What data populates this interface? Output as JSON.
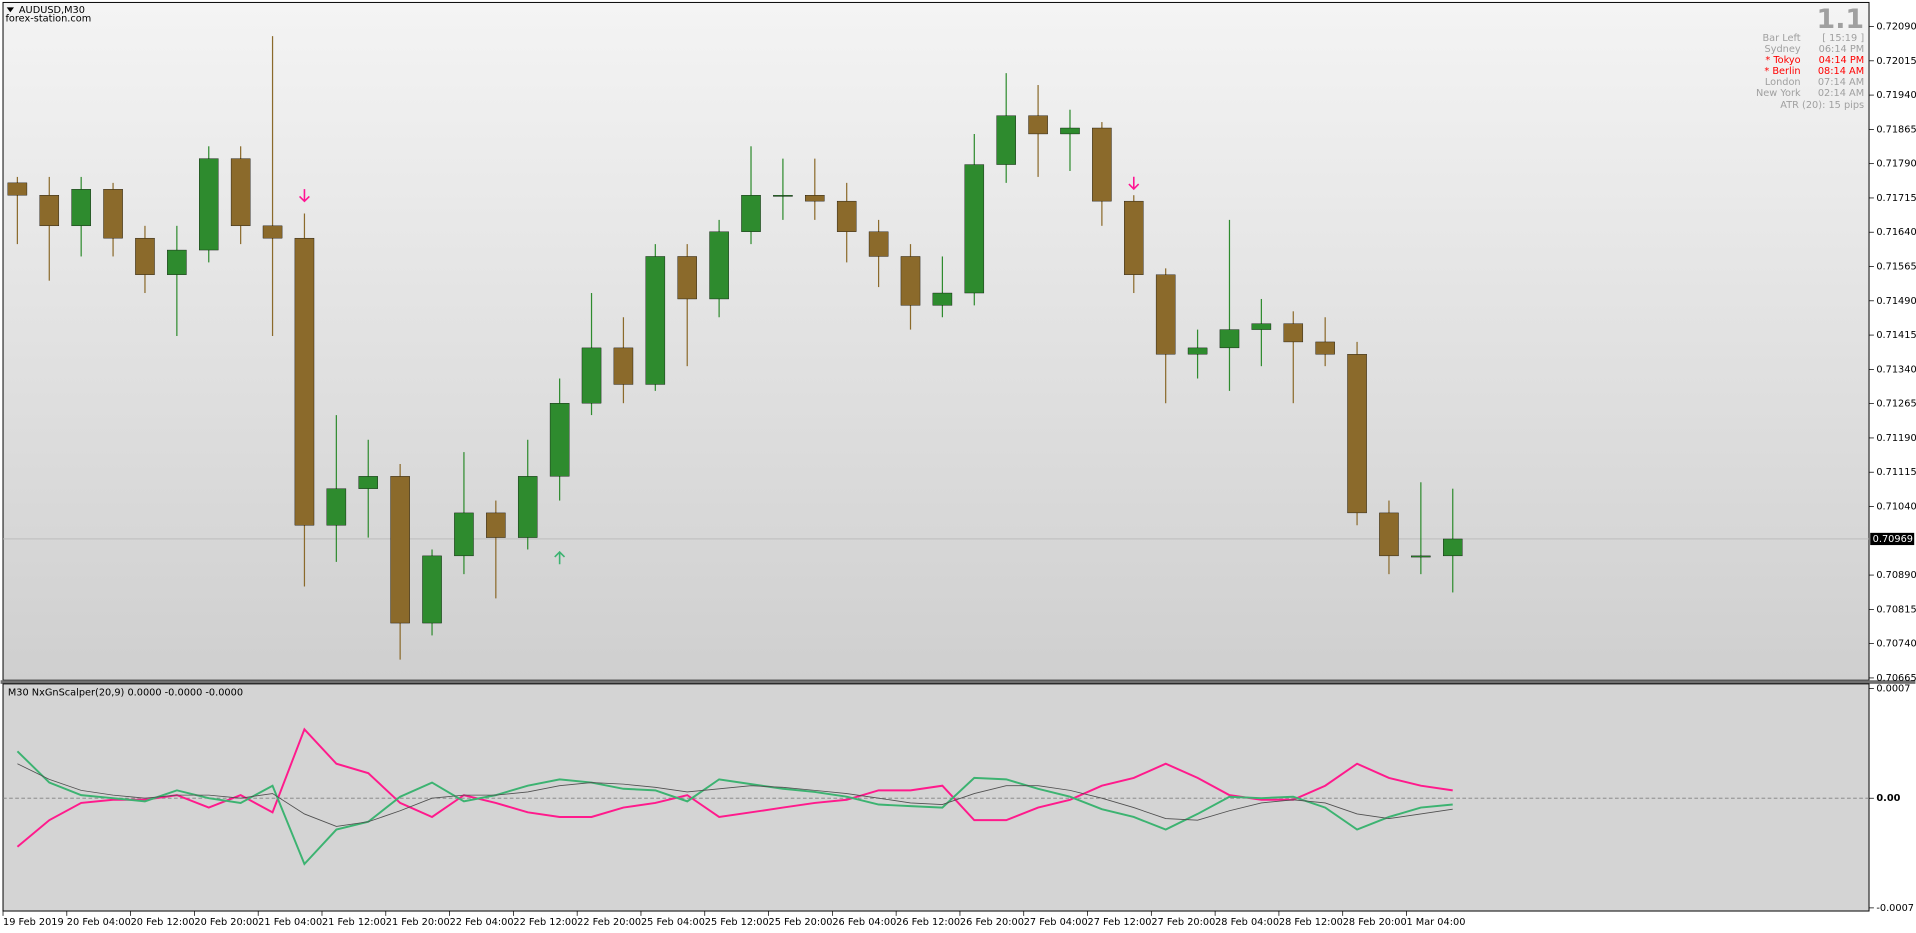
{
  "window": {
    "symbol": "AUDUSD,M30",
    "watermark": "forex-station.com"
  },
  "info": {
    "version": "1.1",
    "rows": [
      {
        "label": "Bar Left",
        "value": "[ 15:19 ]",
        "color": "#a0a0a0"
      },
      {
        "label": "Sydney",
        "value": "06:14 PM",
        "color": "#a0a0a0"
      },
      {
        "label": "* Tokyo",
        "value": "04:14 PM",
        "color": "#ff0000"
      },
      {
        "label": "* Berlin",
        "value": "08:14 AM",
        "color": "#ff0000"
      },
      {
        "label": "London",
        "value": "07:14 AM",
        "color": "#a0a0a0"
      },
      {
        "label": "New York",
        "value": "02:14 AM",
        "color": "#a0a0a0"
      }
    ],
    "atr": "ATR (20): 15 pips"
  },
  "chart_data": [
    {
      "type": "candlestick",
      "bull_color": "#2e8b2e",
      "bear_color": "#8b6a2b",
      "open": [
        0.71748,
        0.71721,
        0.71654,
        0.71734,
        0.71627,
        0.71547,
        0.71601,
        0.71801,
        0.71654,
        0.71627,
        0.70999,
        0.71079,
        0.71106,
        0.70785,
        0.70932,
        0.71026,
        0.70972,
        0.71106,
        0.71266,
        0.71387,
        0.71307,
        0.71587,
        0.71494,
        0.71641,
        0.71721,
        0.71721,
        0.71708,
        0.71641,
        0.71587,
        0.7148,
        0.71507,
        0.71788,
        0.71895,
        0.71855,
        0.71868,
        0.71708,
        0.71547,
        0.71373,
        0.71387,
        0.71427,
        0.7144,
        0.714,
        0.71373,
        0.71026,
        0.70932,
        0.70932
      ],
      "high": [
        0.71761,
        0.71761,
        0.71761,
        0.71748,
        0.71654,
        0.71654,
        0.71828,
        0.71828,
        0.72069,
        0.71681,
        0.7124,
        0.71186,
        0.71133,
        0.70946,
        0.71159,
        0.71053,
        0.71186,
        0.7132,
        0.71507,
        0.71454,
        0.71614,
        0.71614,
        0.71667,
        0.71828,
        0.71801,
        0.71801,
        0.71748,
        0.71667,
        0.71614,
        0.71587,
        0.71855,
        0.71988,
        0.71962,
        0.71908,
        0.71881,
        0.71721,
        0.71561,
        0.71427,
        0.71667,
        0.71494,
        0.71467,
        0.71454,
        0.714,
        0.71053,
        0.71093,
        0.71079
      ],
      "low": [
        0.71614,
        0.71534,
        0.71587,
        0.71587,
        0.71507,
        0.71413,
        0.71574,
        0.71614,
        0.71413,
        0.70865,
        0.70919,
        0.70972,
        0.70705,
        0.70758,
        0.70892,
        0.70839,
        0.70946,
        0.71053,
        0.7124,
        0.71266,
        0.71293,
        0.71347,
        0.71454,
        0.71614,
        0.71667,
        0.71667,
        0.71574,
        0.7152,
        0.71427,
        0.71454,
        0.7148,
        0.71748,
        0.71761,
        0.71774,
        0.71654,
        0.71507,
        0.71266,
        0.7132,
        0.71293,
        0.71347,
        0.71266,
        0.71347,
        0.70999,
        0.70892,
        0.70892,
        0.70852
      ],
      "close": [
        0.71721,
        0.71654,
        0.71734,
        0.71627,
        0.71547,
        0.71601,
        0.71801,
        0.71654,
        0.71627,
        0.70999,
        0.71079,
        0.71106,
        0.70785,
        0.70932,
        0.71026,
        0.70972,
        0.71106,
        0.71266,
        0.71387,
        0.71307,
        0.71587,
        0.71494,
        0.71641,
        0.71721,
        0.71721,
        0.71708,
        0.71641,
        0.71587,
        0.7148,
        0.71507,
        0.71788,
        0.71895,
        0.71855,
        0.71868,
        0.71708,
        0.71547,
        0.71373,
        0.71387,
        0.71427,
        0.7144,
        0.714,
        0.71373,
        0.71026,
        0.70932,
        0.70932,
        0.70969
      ],
      "xlim": [
        0,
        58.5
      ],
      "xticks": [
        {
          "value": 0,
          "label": "19 Feb 2019"
        },
        {
          "value": 2,
          "label": "20 Feb 04:00"
        },
        {
          "value": 4,
          "label": "20 Feb 12:00"
        },
        {
          "value": 6,
          "label": "20 Feb 20:00"
        },
        {
          "value": 8,
          "label": "21 Feb 04:00"
        },
        {
          "value": 10,
          "label": "21 Feb 12:00"
        },
        {
          "value": 12,
          "label": "21 Feb 20:00"
        },
        {
          "value": 14,
          "label": "22 Feb 04:00"
        },
        {
          "value": 16,
          "label": "22 Feb 12:00"
        },
        {
          "value": 18,
          "label": "22 Feb 20:00"
        },
        {
          "value": 20,
          "label": "25 Feb 04:00"
        },
        {
          "value": 22,
          "label": "25 Feb 12:00"
        },
        {
          "value": 24,
          "label": "25 Feb 20:00"
        },
        {
          "value": 26,
          "label": "26 Feb 04:00"
        },
        {
          "value": 28,
          "label": "26 Feb 12:00"
        },
        {
          "value": 30,
          "label": "26 Feb 20:00"
        },
        {
          "value": 32,
          "label": "27 Feb 04:00"
        },
        {
          "value": 34,
          "label": "27 Feb 12:00"
        },
        {
          "value": 36,
          "label": "27 Feb 20:00"
        },
        {
          "value": 38,
          "label": "28 Feb 04:00"
        },
        {
          "value": 40,
          "label": "28 Feb 12:00"
        },
        {
          "value": 42,
          "label": "28 Feb 20:00"
        },
        {
          "value": 44,
          "label": "1 Mar 04:00"
        }
      ],
      "ylim": [
        0.7066,
        0.7214
      ],
      "yticks": [
        {
          "value": 0.7209,
          "label": "0.72090"
        },
        {
          "value": 0.72015,
          "label": "0.72015"
        },
        {
          "value": 0.7194,
          "label": "0.71940"
        },
        {
          "value": 0.71865,
          "label": "0.71865"
        },
        {
          "value": 0.7179,
          "label": "0.71790"
        },
        {
          "value": 0.71715,
          "label": "0.71715"
        },
        {
          "value": 0.7164,
          "label": "0.71640"
        },
        {
          "value": 0.71565,
          "label": "0.71565"
        },
        {
          "value": 0.7149,
          "label": "0.71490"
        },
        {
          "value": 0.71415,
          "label": "0.71415"
        },
        {
          "value": 0.7134,
          "label": "0.71340"
        },
        {
          "value": 0.71265,
          "label": "0.71265"
        },
        {
          "value": 0.7119,
          "label": "0.71190"
        },
        {
          "value": 0.71115,
          "label": "0.71115"
        },
        {
          "value": 0.7104,
          "label": "0.71040"
        },
        {
          "value": 0.7089,
          "label": "0.70890"
        },
        {
          "value": 0.70815,
          "label": "0.70815"
        },
        {
          "value": 0.7074,
          "label": "0.70740"
        },
        {
          "value": 0.70665,
          "label": "0.70665"
        }
      ],
      "current_price": {
        "value": 0.70969,
        "label": "0.70969"
      },
      "signals": [
        {
          "index": 9,
          "price": 0.71721,
          "direction": "down",
          "color": "#ff1493"
        },
        {
          "index": 17,
          "price": 0.70927,
          "direction": "up",
          "color": "#3cb371"
        },
        {
          "index": 35,
          "price": 0.71748,
          "direction": "down",
          "color": "#ff1493"
        }
      ]
    },
    {
      "type": "line",
      "title": "M30 NxGnScalper(20,9) 0.0000 -0.0000 -0.0000",
      "xlim": [
        0,
        58.5
      ],
      "ylim": [
        -0.00072,
        0.00073
      ],
      "yticks": [
        0.0007,
        {
          "value": 0,
          "label": "0.00"
        },
        -0.0007
      ],
      "series": [
        {
          "color": "#ff1a8c",
          "width": 1.6,
          "values": [
            -0.00031,
            -0.00014,
            -3e-05,
            -1e-05,
            -1e-05,
            2e-05,
            -6e-05,
            2e-05,
            -9e-05,
            0.00044,
            0.00022,
            0.00016,
            -3e-05,
            -0.00012,
            2e-05,
            -3e-05,
            -9e-05,
            -0.00012,
            -0.00012,
            -6e-05,
            -3e-05,
            2e-05,
            -0.00012,
            -9e-05,
            -6e-05,
            -3e-05,
            -1e-05,
            5e-05,
            5e-05,
            8e-05,
            -0.00014,
            -0.00014,
            -6e-05,
            -1e-05,
            8e-05,
            0.00013,
            0.00022,
            0.00013,
            2e-05,
            -1e-05,
            -1e-05,
            8e-05,
            0.00022,
            0.00013,
            8e-05,
            5e-05
          ]
        },
        {
          "color": "#3cb371",
          "width": 1.6,
          "values": [
            0.0003,
            0.0001,
            2e-05,
            0,
            -2e-05,
            5e-05,
            0,
            -3e-05,
            8e-05,
            -0.00042,
            -0.0002,
            -0.00015,
            1e-05,
            0.0001,
            -2e-05,
            2e-05,
            8e-05,
            0.00012,
            0.0001,
            6e-05,
            5e-05,
            -2e-05,
            0.00012,
            9e-05,
            6e-05,
            4e-05,
            1e-05,
            -4e-05,
            -5e-05,
            -6e-05,
            0.00013,
            0.00012,
            6e-05,
            1e-05,
            -7e-05,
            -0.00012,
            -0.0002,
            -0.0001,
            1e-05,
            0,
            1e-05,
            -6e-05,
            -0.0002,
            -0.00012,
            -6e-05,
            -4e-05
          ]
        },
        {
          "color": "#505050",
          "width": 0.7,
          "values": [
            0.00022,
            0.00012,
            5e-05,
            2e-05,
            0,
            2e-05,
            2e-05,
            0,
            3e-05,
            -0.0001,
            -0.00018,
            -0.00015,
            -8e-05,
            0,
            2e-05,
            2e-05,
            4e-05,
            8e-05,
            0.0001,
            9e-05,
            7e-05,
            4e-05,
            6e-05,
            8e-05,
            7e-05,
            5e-05,
            3e-05,
            0,
            -3e-05,
            -4e-05,
            3e-05,
            8e-05,
            8e-05,
            5e-05,
            0,
            -6e-05,
            -0.00013,
            -0.00014,
            -8e-05,
            -3e-05,
            -1e-05,
            -3e-05,
            -0.0001,
            -0.00013,
            -0.0001,
            -7e-05
          ]
        }
      ]
    }
  ]
}
